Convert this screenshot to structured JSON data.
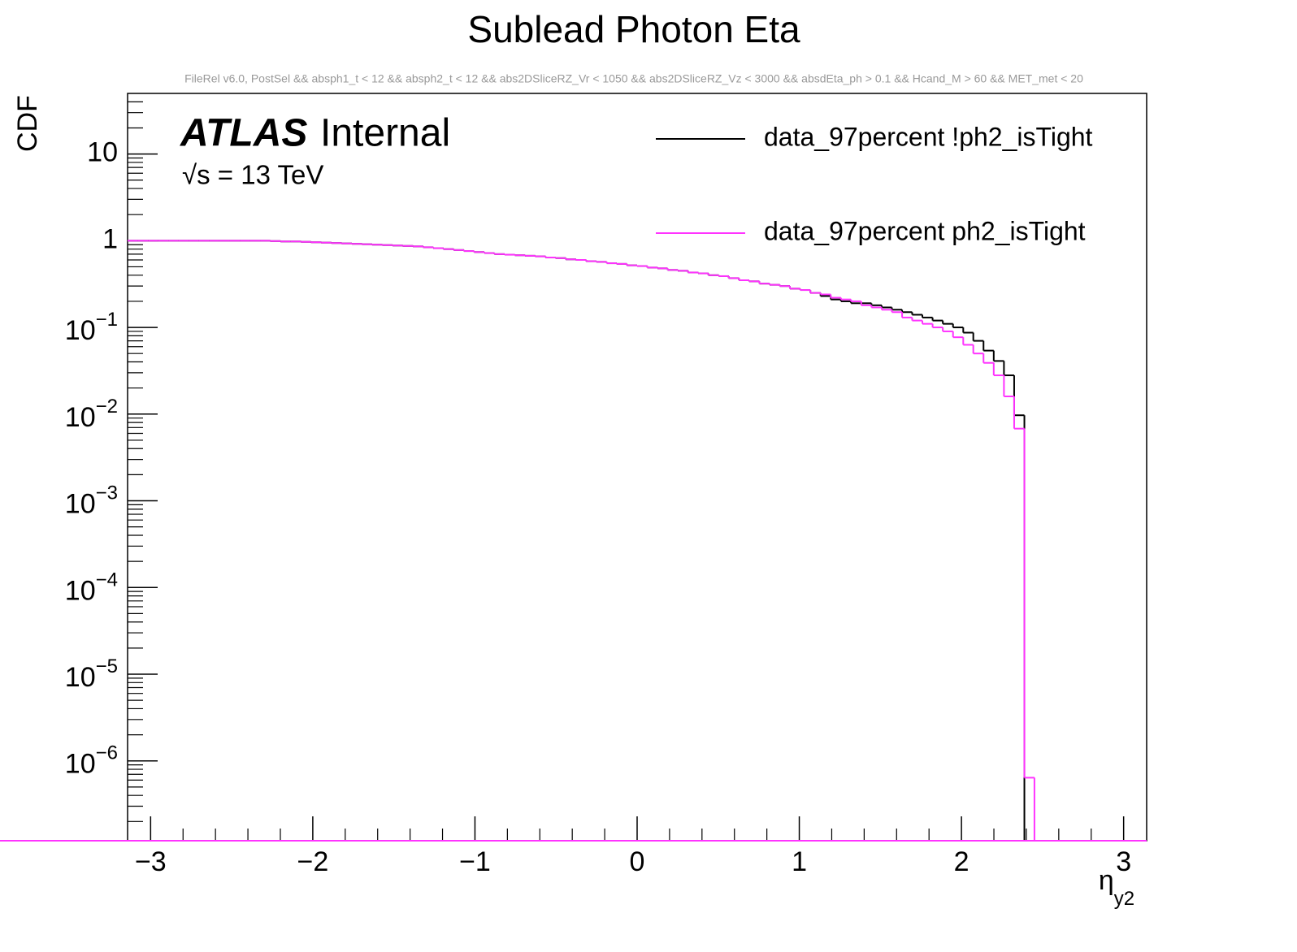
{
  "chart_data": {
    "type": "histogram",
    "title": "Sublead Photon Eta",
    "subtitle": "FileRel v6.0, PostSel &&  absph1_t < 12 && absph2_t < 12 && abs2DSliceRZ_Vr < 1050 && abs2DSliceRZ_Vz < 3000 && absdEta_ph > 0.1 && Hcand_M > 60 && MET_met < 20",
    "y_label": "CDF",
    "x_label": "η",
    "x_label_sub": "y2",
    "annotations": [
      "ATLAS",
      "Internal",
      "√s = 13 TeV"
    ],
    "log_y": true,
    "xlim": [
      -3.142,
      3.142
    ],
    "ylim": [
      1.2e-07,
      50
    ],
    "xticks": [
      {
        "value": -3,
        "label": "−3"
      },
      {
        "value": -2,
        "label": "−2"
      },
      {
        "value": -1,
        "label": "−1"
      },
      0,
      1,
      2,
      3
    ],
    "yticks": [
      {
        "value": 1e-06,
        "label": "10",
        "exponent": "−6"
      },
      {
        "value": 1e-05,
        "label": "10",
        "exponent": "−5"
      },
      {
        "value": 0.0001,
        "label": "10",
        "exponent": "−4"
      },
      {
        "value": 0.001,
        "label": "10",
        "exponent": "−3"
      },
      {
        "value": 0.01,
        "label": "10",
        "exponent": "−2"
      },
      {
        "value": 0.1,
        "label": "10",
        "exponent": "−1"
      },
      1,
      10
    ],
    "bins": [
      -3.142,
      -3.079,
      -3.016,
      -2.953,
      -2.89,
      -2.827,
      -2.765,
      -2.702,
      -2.639,
      -2.576,
      -2.513,
      -2.45,
      -2.388,
      -2.325,
      -2.262,
      -2.199,
      -2.136,
      -2.073,
      -2.011,
      -1.948,
      -1.885,
      -1.822,
      -1.759,
      -1.696,
      -1.634,
      -1.571,
      -1.508,
      -1.445,
      -1.382,
      -1.319,
      -1.257,
      -1.194,
      -1.131,
      -1.068,
      -1.005,
      -0.942,
      -0.88,
      -0.817,
      -0.754,
      -0.691,
      -0.628,
      -0.565,
      -0.503,
      -0.44,
      -0.377,
      -0.314,
      -0.251,
      -0.188,
      -0.126,
      -0.063,
      0,
      0.063,
      0.126,
      0.188,
      0.251,
      0.314,
      0.377,
      0.44,
      0.503,
      0.565,
      0.628,
      0.691,
      0.754,
      0.817,
      0.88,
      0.942,
      1.005,
      1.068,
      1.131,
      1.194,
      1.257,
      1.319,
      1.382,
      1.445,
      1.508,
      1.571,
      1.634,
      1.696,
      1.759,
      1.822,
      1.885,
      1.948,
      2.011,
      2.073,
      2.136,
      2.199,
      2.262,
      2.325,
      2.388,
      2.45,
      2.513,
      2.576,
      2.639,
      2.702,
      2.765,
      2.827,
      2.89,
      2.953,
      3.016,
      3.079,
      3.142
    ],
    "series": [
      {
        "name": "data_97percent !ph2_isTight",
        "color": "#000000",
        "values": [
          1,
          1,
          1,
          1,
          1,
          1,
          1,
          1,
          1,
          1,
          1,
          1,
          1,
          1,
          0.99,
          0.98,
          0.98,
          0.97,
          0.96,
          0.95,
          0.94,
          0.93,
          0.92,
          0.91,
          0.9,
          0.89,
          0.88,
          0.87,
          0.86,
          0.84,
          0.82,
          0.8,
          0.78,
          0.76,
          0.74,
          0.72,
          0.7,
          0.69,
          0.68,
          0.67,
          0.66,
          0.64,
          0.63,
          0.61,
          0.6,
          0.58,
          0.57,
          0.55,
          0.54,
          0.52,
          0.51,
          0.49,
          0.48,
          0.46,
          0.45,
          0.43,
          0.42,
          0.4,
          0.39,
          0.37,
          0.35,
          0.34,
          0.32,
          0.31,
          0.3,
          0.28,
          0.27,
          0.25,
          0.23,
          0.21,
          0.2,
          0.19,
          0.19,
          0.18,
          0.17,
          0.16,
          0.15,
          0.14,
          0.13,
          0.12,
          0.11,
          0.1,
          0.087,
          0.07,
          0.054,
          0.041,
          0.028,
          0.0097,
          0,
          0,
          0,
          0,
          0,
          0,
          0,
          0,
          0,
          0,
          0,
          0
        ]
      },
      {
        "name": "data_97percent ph2_isTight",
        "color": "#ff33ff",
        "values": [
          1,
          1,
          1,
          1,
          1,
          1,
          1,
          1,
          1,
          1,
          1,
          1,
          1,
          1,
          0.99,
          0.98,
          0.98,
          0.97,
          0.96,
          0.95,
          0.94,
          0.93,
          0.92,
          0.91,
          0.9,
          0.89,
          0.88,
          0.87,
          0.86,
          0.84,
          0.82,
          0.8,
          0.78,
          0.76,
          0.74,
          0.72,
          0.7,
          0.69,
          0.68,
          0.67,
          0.66,
          0.64,
          0.63,
          0.61,
          0.6,
          0.58,
          0.57,
          0.55,
          0.54,
          0.52,
          0.51,
          0.49,
          0.48,
          0.46,
          0.45,
          0.43,
          0.42,
          0.4,
          0.39,
          0.37,
          0.35,
          0.34,
          0.32,
          0.31,
          0.3,
          0.28,
          0.27,
          0.25,
          0.24,
          0.22,
          0.21,
          0.2,
          0.18,
          0.17,
          0.16,
          0.15,
          0.13,
          0.12,
          0.11,
          0.1,
          0.09,
          0.077,
          0.063,
          0.05,
          0.039,
          0.028,
          0.016,
          0.0068,
          6.4e-07,
          0,
          0,
          0,
          0,
          0,
          0,
          0,
          0,
          0,
          0,
          0,
          0
        ]
      }
    ]
  }
}
